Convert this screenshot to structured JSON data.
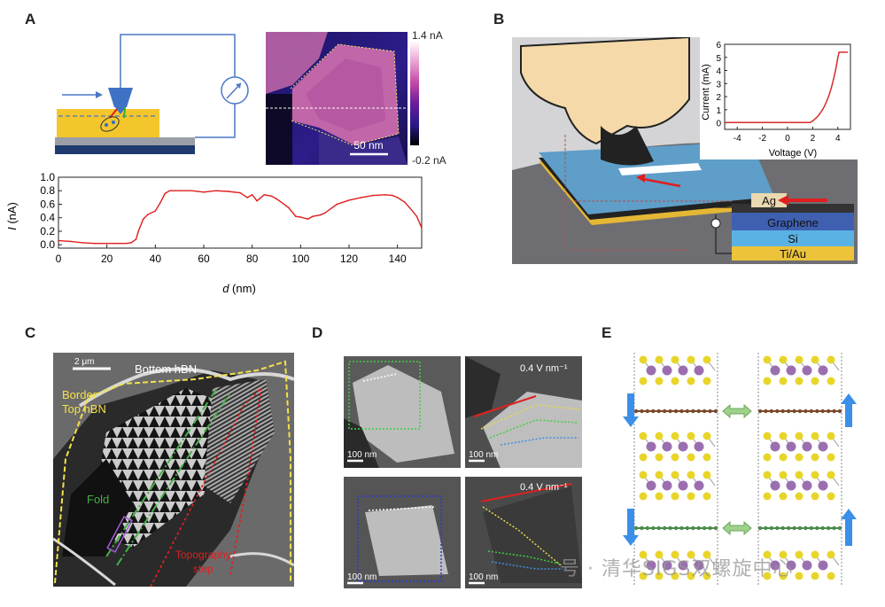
{
  "panels": {
    "A": {
      "label": "A",
      "colorbar": {
        "max": "1.4 nA",
        "min": "-0.2 nA"
      },
      "scalebar": "50 nm",
      "plot": {
        "ylabel_var": "I",
        "ylabel_unit": " (nA)",
        "xlabel_var": "d",
        "xlabel_unit": " (nm)",
        "yticks": [
          "0.0",
          "0.2",
          "0.4",
          "0.6",
          "0.8",
          "1.0"
        ],
        "xticks": [
          "0",
          "20",
          "40",
          "60",
          "80",
          "100",
          "120",
          "140"
        ]
      }
    },
    "B": {
      "label": "B",
      "layers": [
        "Ag",
        "Graphene",
        "Si",
        "Ti/Au"
      ],
      "inset": {
        "ylabel": "Current (mA)",
        "xlabel": "Voltage (V)",
        "yticks": [
          "0",
          "1",
          "2",
          "3",
          "4",
          "5",
          "6"
        ],
        "xticks": [
          "-4",
          "-2",
          "0",
          "2",
          "4"
        ]
      }
    },
    "C": {
      "label": "C",
      "scalebar": "2 μm",
      "title": "Bottom hBN",
      "border_line1": "Border",
      "border_line2": "Top hBN",
      "fold": "Fold",
      "topo_line1": "Topography",
      "topo_line2": "step"
    },
    "D": {
      "label": "D",
      "field1": "0.4 V nm⁻¹",
      "field2": "0.4 V nm⁻¹",
      "scalebar": "100 nm"
    },
    "E": {
      "label": "E"
    }
  },
  "watermark": "号 · 清华SIGS双螺旋中心",
  "chart_data": {
    "type": "line",
    "xlabel": "d (nm)",
    "ylabel": "I (nA)",
    "xlim": [
      0,
      150
    ],
    "ylim": [
      -0.05,
      1.0
    ],
    "x": [
      0,
      5,
      10,
      15,
      20,
      25,
      28,
      30,
      32,
      33,
      35,
      37,
      40,
      42,
      44,
      46,
      50,
      55,
      60,
      65,
      70,
      75,
      78,
      80,
      82,
      85,
      88,
      90,
      92,
      95,
      98,
      100,
      103,
      105,
      108,
      110,
      115,
      120,
      125,
      130,
      135,
      138,
      140,
      143,
      145,
      148,
      150
    ],
    "y": [
      0.06,
      0.05,
      0.03,
      0.02,
      0.02,
      0.02,
      0.02,
      0.03,
      0.08,
      0.2,
      0.38,
      0.45,
      0.5,
      0.62,
      0.76,
      0.8,
      0.8,
      0.8,
      0.78,
      0.8,
      0.79,
      0.77,
      0.7,
      0.74,
      0.65,
      0.74,
      0.72,
      0.68,
      0.63,
      0.55,
      0.42,
      0.41,
      0.38,
      0.42,
      0.44,
      0.47,
      0.6,
      0.66,
      0.7,
      0.73,
      0.74,
      0.73,
      0.7,
      0.63,
      0.55,
      0.42,
      0.25
    ]
  },
  "colors": {
    "red": "#e01e1e",
    "blue": "#3f6fbe",
    "yellow": "#e9c24b",
    "accent_green": "#7fb47a"
  }
}
